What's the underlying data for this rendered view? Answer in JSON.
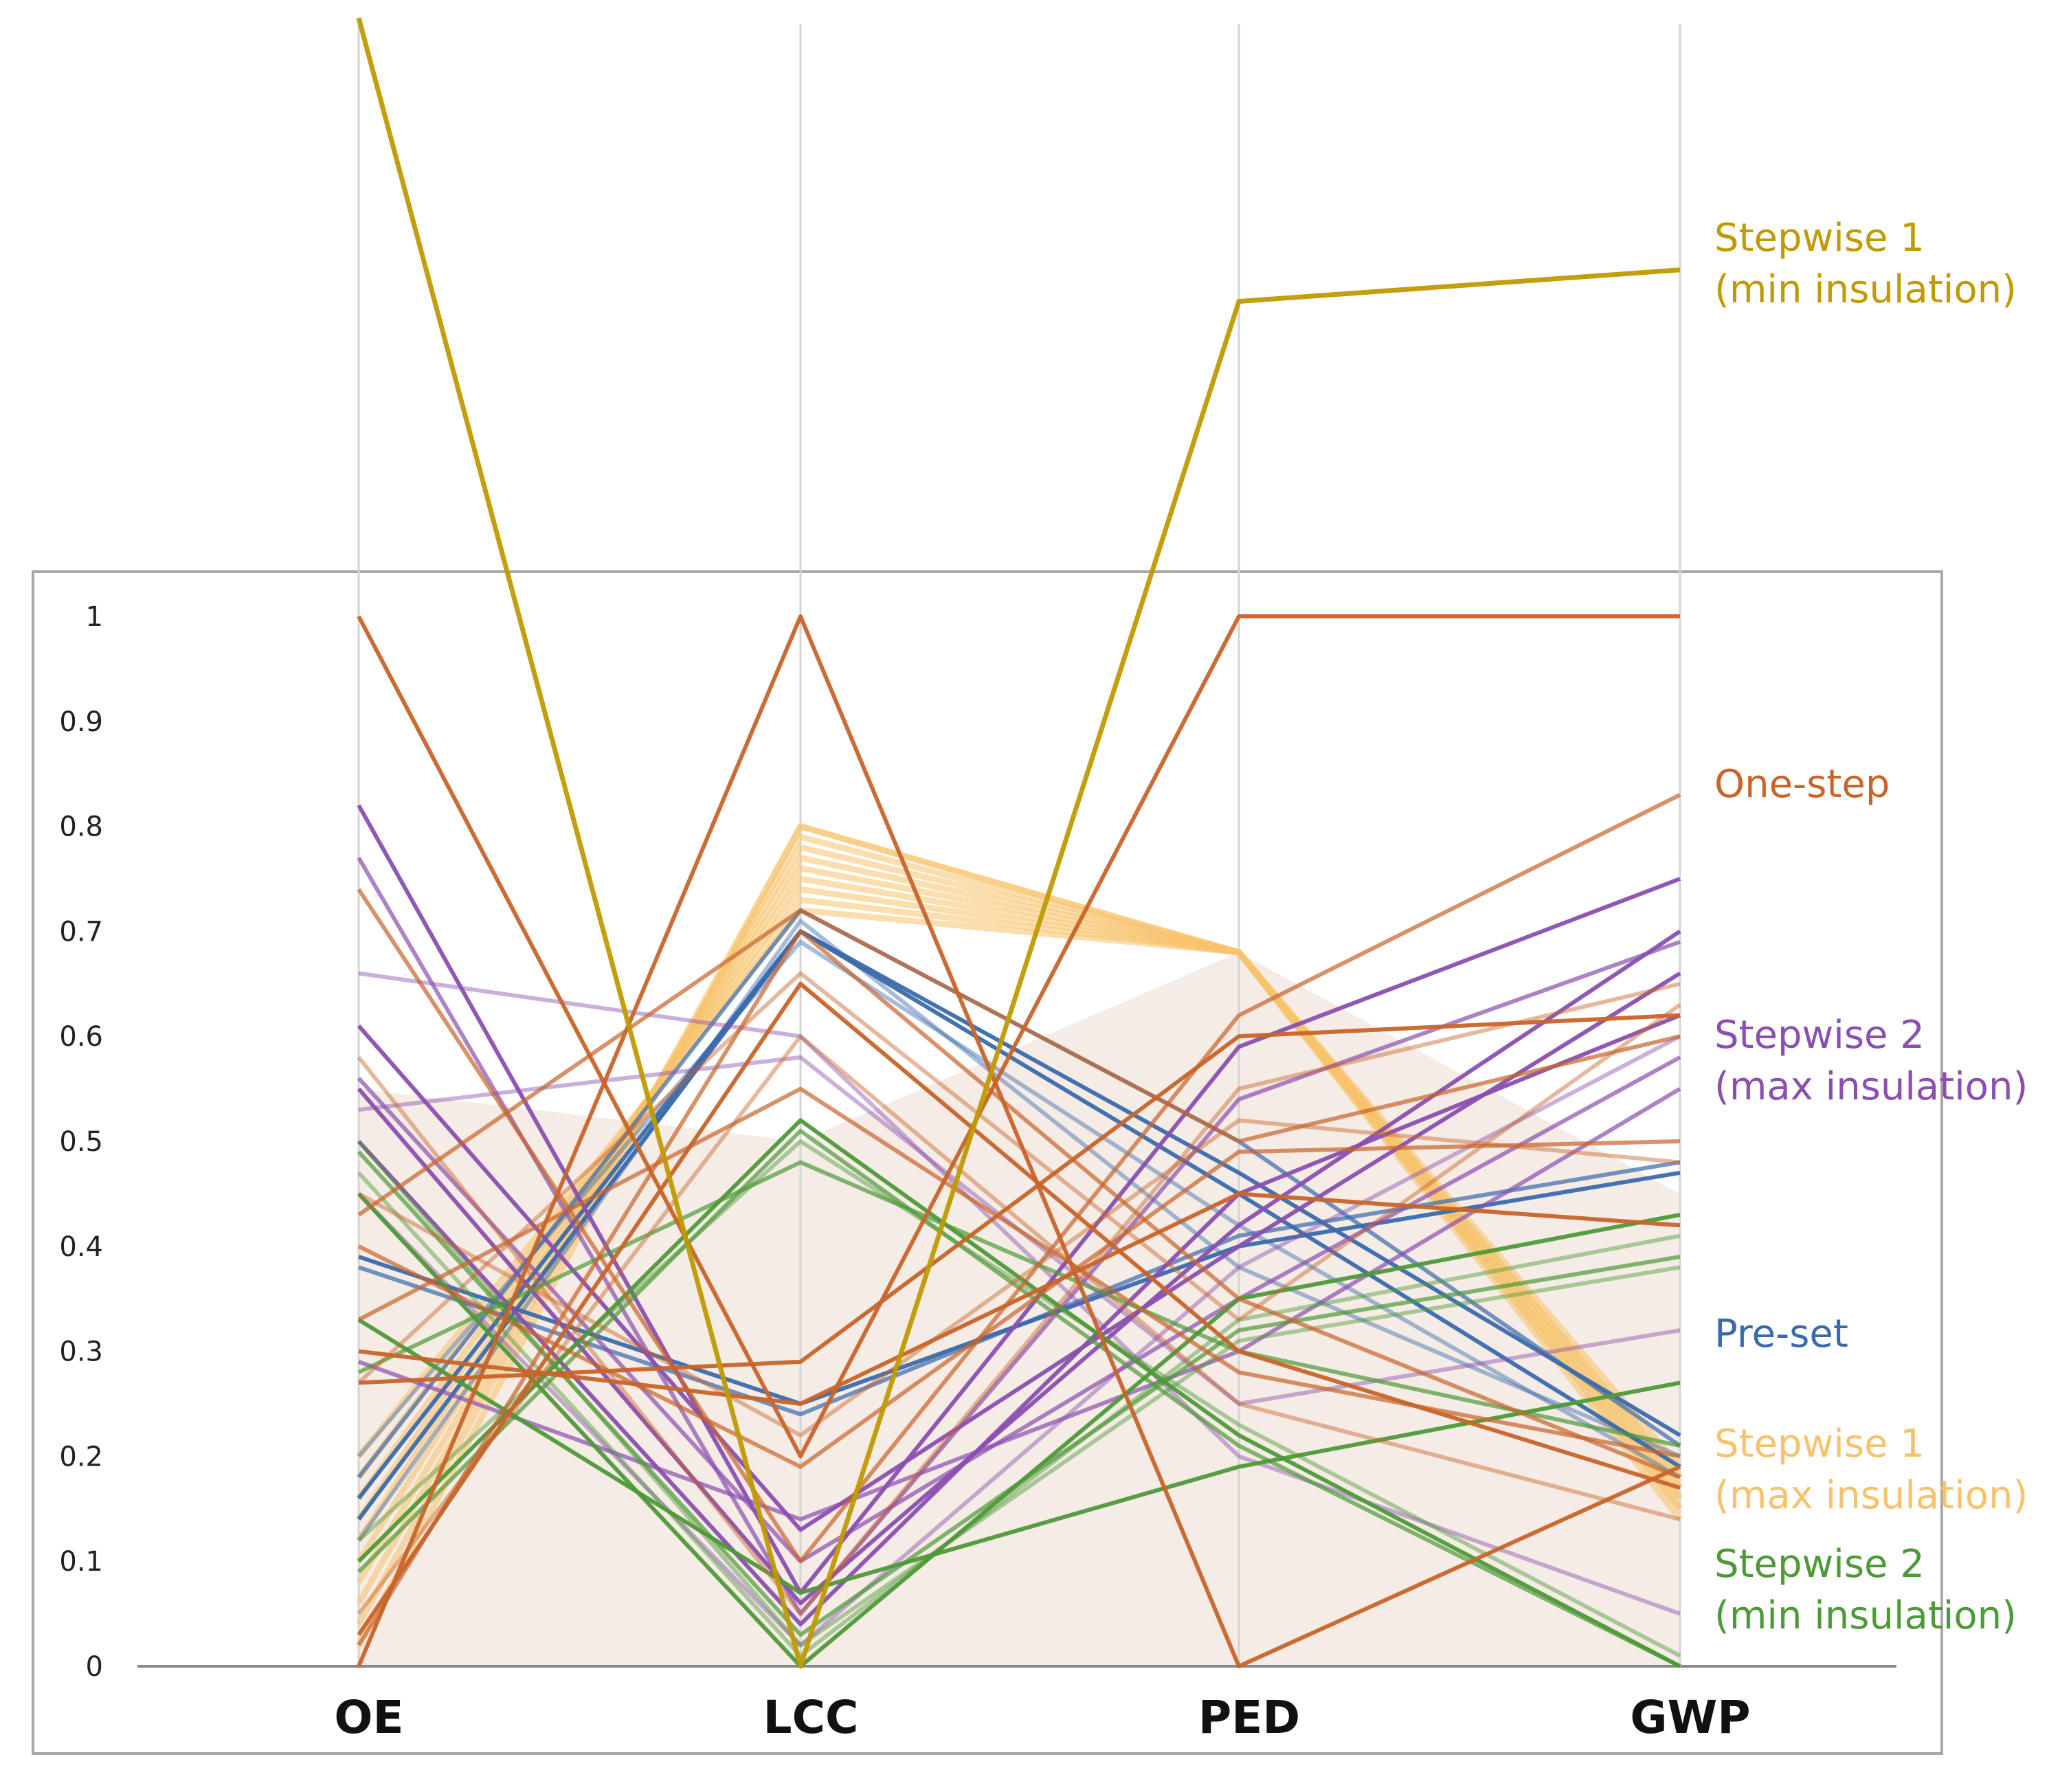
{
  "chart_data": {
    "type": "line",
    "subtype": "parallel-coordinates",
    "title": "",
    "xlabel": "",
    "ylabel": "",
    "categories": [
      "OE",
      "LCC",
      "PED",
      "GWP"
    ],
    "ylim": [
      0,
      1
    ],
    "y_ticks": [
      "0",
      "0.1",
      "0.2",
      "0.3",
      "0.4",
      "0.5",
      "0.6",
      "0.7",
      "0.8",
      "0.9",
      "1"
    ],
    "grid": false,
    "legend_placement": "right",
    "colors": {
      "stepwise1_min": "#c09a00",
      "one_step": "#c8642a",
      "stepwise2_max": "#8a4fb0",
      "preset": "#3a6aac",
      "stepwise1_max": "#f7c26c",
      "stepwise2_min": "#4d9a38"
    },
    "series": [
      {
        "name": "Stepwise 1\n(min insulation)",
        "color": "#c09a00",
        "label_lines": [
          "Stepwise 1",
          "(min insulation)"
        ],
        "lines": [
          [
            1.57,
            0.0,
            1.3,
            1.33
          ]
        ]
      },
      {
        "name": "One-step",
        "color": "#c8642a",
        "label_lines": [
          "One-step"
        ],
        "lines": [
          [
            1.0,
            0.2,
            1.0,
            1.0
          ],
          [
            0.74,
            0.1,
            0.62,
            0.83
          ],
          [
            0.58,
            0.05,
            0.55,
            0.65
          ],
          [
            0.0,
            1.0,
            0.0,
            0.19
          ],
          [
            0.43,
            0.72,
            0.5,
            0.6
          ],
          [
            0.27,
            0.66,
            0.33,
            0.63
          ],
          [
            0.03,
            0.65,
            0.3,
            0.17
          ],
          [
            0.33,
            0.55,
            0.28,
            0.2
          ],
          [
            0.45,
            0.22,
            0.52,
            0.48
          ],
          [
            0.27,
            0.29,
            0.6,
            0.62
          ],
          [
            0.4,
            0.19,
            0.49,
            0.5
          ],
          [
            0.05,
            0.6,
            0.25,
            0.14
          ],
          [
            0.3,
            0.25,
            0.45,
            0.42
          ],
          [
            0.02,
            0.7,
            0.35,
            0.18
          ]
        ]
      },
      {
        "name": "Stepwise 2\n(max insulation)",
        "color": "#8a4fb0",
        "label_lines": [
          "Stepwise 2",
          "(max insulation)"
        ],
        "lines": [
          [
            0.82,
            0.07,
            0.59,
            0.75
          ],
          [
            0.77,
            0.05,
            0.54,
            0.69
          ],
          [
            0.66,
            0.6,
            0.2,
            0.05
          ],
          [
            0.61,
            0.13,
            0.4,
            0.66
          ],
          [
            0.56,
            0.1,
            0.35,
            0.58
          ],
          [
            0.53,
            0.58,
            0.25,
            0.32
          ],
          [
            0.5,
            0.04,
            0.45,
            0.62
          ],
          [
            0.29,
            0.14,
            0.3,
            0.55
          ],
          [
            0.45,
            0.02,
            0.38,
            0.6
          ],
          [
            0.55,
            0.06,
            0.42,
            0.7
          ]
        ]
      },
      {
        "name": "Pre-set",
        "color": "#3a6aac",
        "label_lines": [
          "Pre-set"
        ],
        "lines": [
          [
            0.39,
            0.25,
            0.4,
            0.47
          ],
          [
            0.38,
            0.24,
            0.41,
            0.48
          ],
          [
            0.12,
            0.71,
            0.38,
            0.2
          ],
          [
            0.16,
            0.7,
            0.45,
            0.19
          ],
          [
            0.18,
            0.72,
            0.5,
            0.21
          ],
          [
            0.2,
            0.69,
            0.42,
            0.18
          ],
          [
            0.14,
            0.7,
            0.47,
            0.22
          ]
        ]
      },
      {
        "name": "Stepwise 1\n(max insulation)",
        "color": "#f7c26c",
        "label_lines": [
          "Stepwise 1",
          "(max insulation)"
        ],
        "lines": [
          [
            0.2,
            0.72,
            0.68,
            0.14
          ],
          [
            0.18,
            0.73,
            0.68,
            0.15
          ],
          [
            0.16,
            0.74,
            0.68,
            0.15
          ],
          [
            0.14,
            0.75,
            0.68,
            0.16
          ],
          [
            0.12,
            0.76,
            0.68,
            0.16
          ],
          [
            0.1,
            0.77,
            0.68,
            0.17
          ],
          [
            0.08,
            0.78,
            0.68,
            0.17
          ],
          [
            0.06,
            0.79,
            0.68,
            0.18
          ],
          [
            0.04,
            0.8,
            0.68,
            0.18
          ],
          [
            0.02,
            0.8,
            0.68,
            0.19
          ]
        ]
      },
      {
        "name": "Stepwise 2\n(min insulation)",
        "color": "#4d9a38",
        "label_lines": [
          "Stepwise 2",
          "(min insulation)"
        ],
        "lines": [
          [
            0.1,
            0.52,
            0.22,
            0.0
          ],
          [
            0.09,
            0.51,
            0.21,
            0.0
          ],
          [
            0.12,
            0.5,
            0.23,
            0.01
          ],
          [
            0.33,
            0.07,
            0.19,
            0.27
          ],
          [
            0.49,
            0.03,
            0.32,
            0.39
          ],
          [
            0.47,
            0.01,
            0.33,
            0.41
          ],
          [
            0.45,
            0.0,
            0.35,
            0.43
          ],
          [
            0.28,
            0.48,
            0.3,
            0.21
          ],
          [
            0.5,
            0.02,
            0.31,
            0.38
          ]
        ]
      }
    ]
  }
}
